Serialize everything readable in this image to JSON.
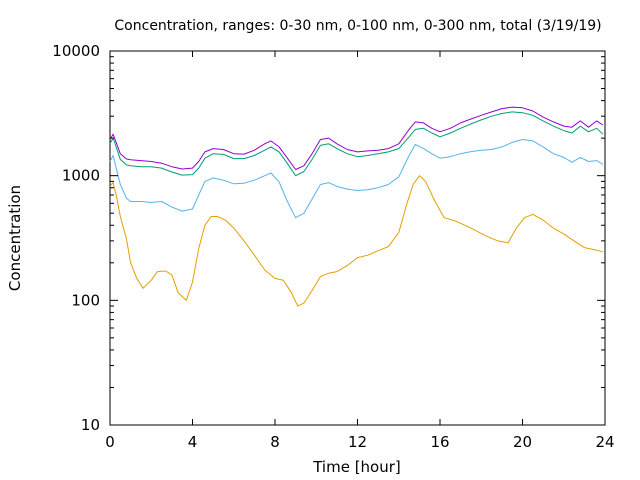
{
  "chart_data": {
    "type": "line",
    "title": "Concentration, ranges: 0-30 nm, 0-100 nm, 0-300 nm, total (3/19/19)",
    "xlabel": "Time [hour]",
    "ylabel": "Concentration",
    "xlim": [
      0,
      24
    ],
    "ylim": [
      10,
      10000
    ],
    "y_scale": "log",
    "x_ticks": [
      0,
      4,
      8,
      12,
      16,
      20,
      24
    ],
    "y_ticks": [
      10,
      100,
      1000,
      10000
    ],
    "grid": false,
    "legend": "none",
    "series": [
      {
        "color": "#e69f00",
        "x": [
          0,
          0.15,
          0.3,
          0.5,
          0.8,
          1.0,
          1.3,
          1.6,
          2.0,
          2.3,
          2.7,
          3.0,
          3.3,
          3.7,
          4.0,
          4.3,
          4.6,
          4.9,
          5.2,
          5.6,
          6.0,
          6.5,
          7.0,
          7.5,
          8.0,
          8.4,
          8.8,
          9.1,
          9.4,
          9.8,
          10.2,
          10.6,
          11.0,
          11.5,
          12.0,
          12.5,
          13.0,
          13.5,
          14.0,
          14.4,
          14.7,
          15.0,
          15.3,
          15.7,
          16.2,
          16.8,
          17.5,
          18.2,
          18.8,
          19.3,
          19.7,
          20.1,
          20.5,
          21.0,
          21.5,
          22.0,
          22.5,
          23.0,
          23.5,
          23.9
        ],
        "y": [
          820,
          880,
          700,
          470,
          310,
          200,
          150,
          125,
          145,
          170,
          172,
          160,
          115,
          100,
          140,
          260,
          400,
          470,
          470,
          440,
          380,
          300,
          230,
          175,
          150,
          145,
          115,
          90,
          95,
          120,
          155,
          165,
          170,
          190,
          220,
          230,
          250,
          270,
          350,
          600,
          850,
          1000,
          900,
          650,
          460,
          430,
          380,
          330,
          300,
          290,
          380,
          460,
          490,
          440,
          380,
          340,
          300,
          265,
          255,
          245
        ]
      },
      {
        "color": "#56b4e9",
        "x": [
          0,
          0.15,
          0.3,
          0.5,
          0.8,
          1.0,
          1.5,
          2.0,
          2.5,
          3.0,
          3.5,
          4.0,
          4.3,
          4.6,
          5.0,
          5.5,
          6.0,
          6.5,
          7.0,
          7.5,
          7.8,
          8.2,
          8.6,
          9.0,
          9.4,
          9.8,
          10.2,
          10.6,
          11.0,
          11.5,
          12.0,
          12.5,
          13.0,
          13.5,
          14.0,
          14.5,
          14.8,
          15.2,
          15.6,
          16.0,
          16.5,
          17.0,
          17.5,
          18.0,
          18.5,
          19.0,
          19.5,
          20.0,
          20.5,
          21.0,
          21.5,
          22.0,
          22.4,
          22.8,
          23.2,
          23.6,
          23.9
        ],
        "y": [
          1300,
          1450,
          1150,
          850,
          660,
          620,
          620,
          610,
          620,
          560,
          520,
          540,
          700,
          900,
          960,
          920,
          860,
          870,
          920,
          1000,
          1050,
          890,
          620,
          460,
          500,
          650,
          850,
          880,
          820,
          780,
          760,
          770,
          800,
          850,
          980,
          1450,
          1780,
          1650,
          1500,
          1380,
          1420,
          1500,
          1560,
          1600,
          1620,
          1700,
          1850,
          1950,
          1900,
          1700,
          1500,
          1400,
          1280,
          1400,
          1300,
          1320,
          1230
        ]
      },
      {
        "color": "#009e73",
        "x": [
          0,
          0.15,
          0.3,
          0.5,
          0.8,
          1.0,
          1.5,
          2.0,
          2.5,
          3.0,
          3.5,
          4.0,
          4.3,
          4.6,
          5.0,
          5.5,
          6.0,
          6.5,
          7.0,
          7.5,
          7.8,
          8.2,
          8.6,
          9.0,
          9.4,
          9.8,
          10.2,
          10.6,
          11.0,
          11.5,
          12.0,
          12.5,
          13.0,
          13.5,
          14.0,
          14.5,
          14.8,
          15.2,
          15.6,
          16.0,
          16.5,
          17.0,
          17.5,
          18.0,
          18.5,
          19.0,
          19.5,
          20.0,
          20.5,
          21.0,
          21.5,
          22.0,
          22.4,
          22.8,
          23.2,
          23.6,
          23.9
        ],
        "y": [
          1800,
          2000,
          1700,
          1350,
          1220,
          1200,
          1180,
          1180,
          1150,
          1070,
          1010,
          1020,
          1150,
          1380,
          1500,
          1480,
          1370,
          1370,
          1450,
          1600,
          1700,
          1550,
          1250,
          1000,
          1080,
          1350,
          1750,
          1800,
          1650,
          1500,
          1420,
          1450,
          1500,
          1550,
          1650,
          2050,
          2350,
          2400,
          2200,
          2050,
          2200,
          2400,
          2600,
          2800,
          3000,
          3150,
          3250,
          3200,
          3050,
          2750,
          2500,
          2300,
          2200,
          2500,
          2250,
          2400,
          2150
        ]
      },
      {
        "color": "#9400d3",
        "x": [
          0,
          0.15,
          0.3,
          0.5,
          0.8,
          1.0,
          1.5,
          2.0,
          2.5,
          3.0,
          3.5,
          4.0,
          4.3,
          4.6,
          5.0,
          5.5,
          6.0,
          6.5,
          7.0,
          7.5,
          7.8,
          8.2,
          8.6,
          9.0,
          9.4,
          9.8,
          10.2,
          10.6,
          11.0,
          11.5,
          12.0,
          12.5,
          13.0,
          13.5,
          14.0,
          14.5,
          14.8,
          15.2,
          15.6,
          16.0,
          16.5,
          17.0,
          17.5,
          18.0,
          18.5,
          19.0,
          19.5,
          20.0,
          20.5,
          21.0,
          21.5,
          22.0,
          22.4,
          22.8,
          23.2,
          23.6,
          23.9
        ],
        "y": [
          1950,
          2150,
          1850,
          1500,
          1360,
          1340,
          1320,
          1300,
          1260,
          1180,
          1130,
          1150,
          1300,
          1550,
          1650,
          1620,
          1500,
          1490,
          1600,
          1800,
          1900,
          1700,
          1380,
          1120,
          1200,
          1500,
          1950,
          2000,
          1800,
          1620,
          1550,
          1580,
          1600,
          1650,
          1800,
          2350,
          2700,
          2650,
          2400,
          2250,
          2400,
          2650,
          2850,
          3050,
          3250,
          3450,
          3550,
          3500,
          3300,
          2950,
          2700,
          2500,
          2450,
          2750,
          2450,
          2750,
          2550
        ]
      }
    ]
  }
}
